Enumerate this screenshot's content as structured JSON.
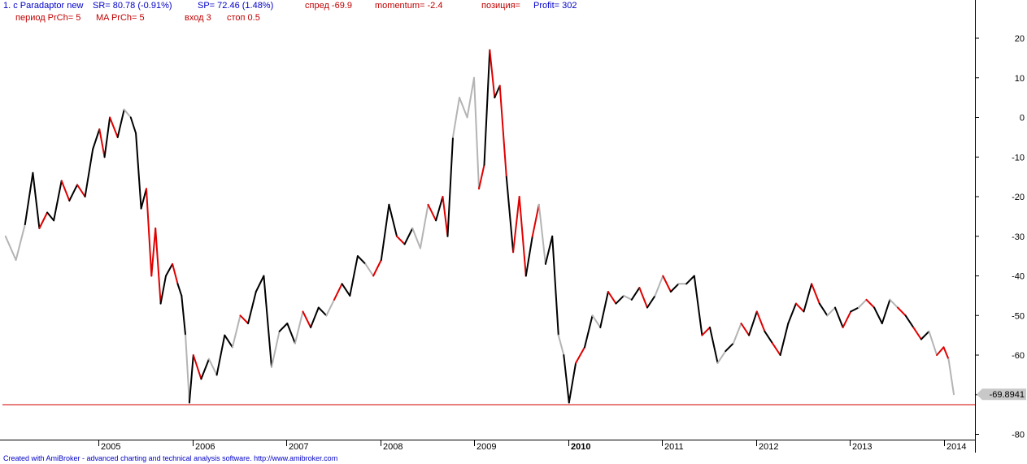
{
  "header": {
    "line1_series": "1. c Paradaptor new",
    "line1_sr": "SR= 80.78  (-0.91%)",
    "line1_sp": "SP= 72.46  (1.48%)",
    "line1_spread": "спред -69.9",
    "line1_momentum": "momentum=  -2.4",
    "line1_position": "позиция=",
    "line1_profit": "Profit= 302",
    "line2_period": "период PrCh= 5",
    "line2_ma": "MA PrCh= 5",
    "line2_entry": "вход 3",
    "line2_stop": "стоп 0.5"
  },
  "footer": {
    "credit": "Created with AmiBroker - advanced charting and technical analysis software. http://www.amibroker.com"
  },
  "colors": {
    "up": "#000000",
    "down": "#e00000",
    "neutral": "#b4b4b4",
    "ref_line": "#d00000",
    "axis": "#000000",
    "last_value_marker": "#c8c8c8"
  },
  "chart_data": {
    "type": "line",
    "x_axis": {
      "type": "date",
      "range": [
        "2004-01",
        "2014-02"
      ],
      "tick_labels": [
        "2005",
        "2006",
        "2007",
        "2008",
        "2009",
        "2010",
        "2011",
        "2012",
        "2013",
        "2014"
      ],
      "bold_tick": "2010"
    },
    "y_axis": {
      "position": "right",
      "range": [
        -82,
        24
      ],
      "ticks": [
        20,
        10,
        0,
        -10,
        -20,
        -30,
        -40,
        -50,
        -60,
        -70,
        -80
      ],
      "tick_labels": [
        "20",
        "10",
        "0",
        "-10",
        "-20",
        "-30",
        "-40",
        "-50",
        "-60",
        "",
        "-80"
      ]
    },
    "reference_line": {
      "value": -72.5
    },
    "last_value_label": "-69.8941",
    "last_value": -69.8941,
    "grid": false,
    "series": [
      {
        "color_coding": "black = rising, red = falling, grey = neutral",
        "points": [
          [
            "2004-01-05",
            -30,
            "g"
          ],
          [
            "2004-02-15",
            -36,
            "g"
          ],
          [
            "2004-03-20",
            -27,
            "g"
          ],
          [
            "2004-04-20",
            -14,
            "k"
          ],
          [
            "2004-05-15",
            -28,
            "k"
          ],
          [
            "2004-06-15",
            -24,
            "r"
          ],
          [
            "2004-07-10",
            -26,
            "k"
          ],
          [
            "2004-08-10",
            -16,
            "k"
          ],
          [
            "2004-09-10",
            -21,
            "r"
          ],
          [
            "2004-10-10",
            -17,
            "k"
          ],
          [
            "2004-11-10",
            -20,
            "r"
          ],
          [
            "2004-12-10",
            -8,
            "k"
          ],
          [
            "2005-01-05",
            -3,
            "k"
          ],
          [
            "2005-01-25",
            -10,
            "r"
          ],
          [
            "2005-02-15",
            0,
            "k"
          ],
          [
            "2005-03-15",
            -5,
            "r"
          ],
          [
            "2005-04-10",
            2,
            "k"
          ],
          [
            "2005-05-05",
            0,
            "g"
          ],
          [
            "2005-05-25",
            -4,
            "k"
          ],
          [
            "2005-06-15",
            -23,
            "k"
          ],
          [
            "2005-07-05",
            -18,
            "k"
          ],
          [
            "2005-07-25",
            -40,
            "r"
          ],
          [
            "2005-08-10",
            -28,
            "r"
          ],
          [
            "2005-08-30",
            -47,
            "r"
          ],
          [
            "2005-09-20",
            -40,
            "k"
          ],
          [
            "2005-10-15",
            -37,
            "k"
          ],
          [
            "2005-11-05",
            -42,
            "r"
          ],
          [
            "2005-11-20",
            -45,
            "k"
          ],
          [
            "2005-12-05",
            -55,
            "k"
          ],
          [
            "2005-12-20",
            -72,
            "g"
          ],
          [
            "2006-01-05",
            -60,
            "k"
          ],
          [
            "2006-02-05",
            -66,
            "r"
          ],
          [
            "2006-03-05",
            -61,
            "k"
          ],
          [
            "2006-04-05",
            -65,
            "g"
          ],
          [
            "2006-05-05",
            -55,
            "k"
          ],
          [
            "2006-06-05",
            -58,
            "k"
          ],
          [
            "2006-07-05",
            -50,
            "g"
          ],
          [
            "2006-08-05",
            -52,
            "r"
          ],
          [
            "2006-09-05",
            -44,
            "k"
          ],
          [
            "2006-10-05",
            -40,
            "k"
          ],
          [
            "2006-11-05",
            -63,
            "k"
          ],
          [
            "2006-12-05",
            -54,
            "g"
          ],
          [
            "2007-01-05",
            -52,
            "k"
          ],
          [
            "2007-02-05",
            -57,
            "k"
          ],
          [
            "2007-03-05",
            -49,
            "g"
          ],
          [
            "2007-04-05",
            -53,
            "r"
          ],
          [
            "2007-05-05",
            -48,
            "k"
          ],
          [
            "2007-06-05",
            -50,
            "k"
          ],
          [
            "2007-07-05",
            -46,
            "g"
          ],
          [
            "2007-08-05",
            -42,
            "r"
          ],
          [
            "2007-09-05",
            -45,
            "k"
          ],
          [
            "2007-10-05",
            -35,
            "k"
          ],
          [
            "2007-11-05",
            -37,
            "k"
          ],
          [
            "2007-12-05",
            -40,
            "g"
          ],
          [
            "2008-01-05",
            -36,
            "r"
          ],
          [
            "2008-02-05",
            -22,
            "k"
          ],
          [
            "2008-03-05",
            -30,
            "k"
          ],
          [
            "2008-04-05",
            -32,
            "r"
          ],
          [
            "2008-05-05",
            -28,
            "k"
          ],
          [
            "2008-06-05",
            -33,
            "g"
          ],
          [
            "2008-07-05",
            -22,
            "g"
          ],
          [
            "2008-08-05",
            -26,
            "r"
          ],
          [
            "2008-09-01",
            -20,
            "k"
          ],
          [
            "2008-09-20",
            -30,
            "r"
          ],
          [
            "2008-10-10",
            -5,
            "k"
          ],
          [
            "2008-11-05",
            5,
            "g"
          ],
          [
            "2008-12-05",
            0,
            "g"
          ],
          [
            "2009-01-01",
            10,
            "g"
          ],
          [
            "2009-01-20",
            -18,
            "g"
          ],
          [
            "2009-02-10",
            -12,
            "r"
          ],
          [
            "2009-03-01",
            17,
            "k"
          ],
          [
            "2009-03-20",
            5,
            "r"
          ],
          [
            "2009-04-10",
            8,
            "k"
          ],
          [
            "2009-05-05",
            -15,
            "r"
          ],
          [
            "2009-06-01",
            -34,
            "k"
          ],
          [
            "2009-06-25",
            -20,
            "r"
          ],
          [
            "2009-07-20",
            -40,
            "r"
          ],
          [
            "2009-08-15",
            -30,
            "k"
          ],
          [
            "2009-09-10",
            -22,
            "r"
          ],
          [
            "2009-10-05",
            -37,
            "g"
          ],
          [
            "2009-11-01",
            -30,
            "k"
          ],
          [
            "2009-11-25",
            -55,
            "k"
          ],
          [
            "2009-12-15",
            -60,
            "g"
          ],
          [
            "2010-01-05",
            -72,
            "k"
          ],
          [
            "2010-02-01",
            -62,
            "k"
          ],
          [
            "2010-03-05",
            -58,
            "r"
          ],
          [
            "2010-04-05",
            -50,
            "k"
          ],
          [
            "2010-05-05",
            -53,
            "g"
          ],
          [
            "2010-06-05",
            -44,
            "k"
          ],
          [
            "2010-07-05",
            -47,
            "r"
          ],
          [
            "2010-08-05",
            -45,
            "k"
          ],
          [
            "2010-09-05",
            -46,
            "g"
          ],
          [
            "2010-10-05",
            -43,
            "k"
          ],
          [
            "2010-11-05",
            -48,
            "r"
          ],
          [
            "2010-12-05",
            -45,
            "k"
          ],
          [
            "2011-01-05",
            -40,
            "g"
          ],
          [
            "2011-02-05",
            -44,
            "r"
          ],
          [
            "2011-03-05",
            -42,
            "k"
          ],
          [
            "2011-04-05",
            -42,
            "g"
          ],
          [
            "2011-05-05",
            -40,
            "k"
          ],
          [
            "2011-06-05",
            -55,
            "k"
          ],
          [
            "2011-07-05",
            -53,
            "r"
          ],
          [
            "2011-08-05",
            -62,
            "k"
          ],
          [
            "2011-09-05",
            -59,
            "g"
          ],
          [
            "2011-10-05",
            -57,
            "k"
          ],
          [
            "2011-11-05",
            -52,
            "g"
          ],
          [
            "2011-12-05",
            -55,
            "r"
          ],
          [
            "2012-01-05",
            -49,
            "k"
          ],
          [
            "2012-02-05",
            -54,
            "r"
          ],
          [
            "2012-03-05",
            -57,
            "k"
          ],
          [
            "2012-04-05",
            -60,
            "r"
          ],
          [
            "2012-05-05",
            -52,
            "k"
          ],
          [
            "2012-06-05",
            -47,
            "k"
          ],
          [
            "2012-07-05",
            -49,
            "r"
          ],
          [
            "2012-08-05",
            -42,
            "k"
          ],
          [
            "2012-09-05",
            -47,
            "r"
          ],
          [
            "2012-10-05",
            -50,
            "k"
          ],
          [
            "2012-11-05",
            -48,
            "g"
          ],
          [
            "2012-12-05",
            -53,
            "k"
          ],
          [
            "2013-01-05",
            -49,
            "r"
          ],
          [
            "2013-02-05",
            -48,
            "k"
          ],
          [
            "2013-03-05",
            -46,
            "g"
          ],
          [
            "2013-04-05",
            -48,
            "r"
          ],
          [
            "2013-05-05",
            -52,
            "k"
          ],
          [
            "2013-06-05",
            -46,
            "k"
          ],
          [
            "2013-07-05",
            -48,
            "g"
          ],
          [
            "2013-08-05",
            -50,
            "r"
          ],
          [
            "2013-09-05",
            -53,
            "k"
          ],
          [
            "2013-10-05",
            -56,
            "r"
          ],
          [
            "2013-11-05",
            -54,
            "k"
          ],
          [
            "2013-12-05",
            -60,
            "g"
          ],
          [
            "2014-01-01",
            -58,
            "r"
          ],
          [
            "2014-01-20",
            -61,
            "r"
          ],
          [
            "2014-02-10",
            -69.89,
            "g"
          ]
        ]
      }
    ]
  }
}
